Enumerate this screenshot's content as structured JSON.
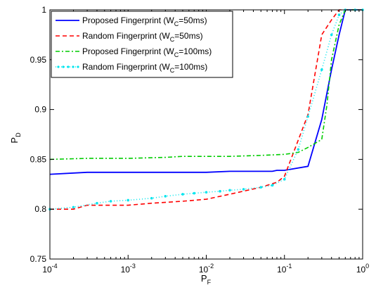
{
  "chart_data": {
    "type": "line",
    "title": "",
    "xlabel": {
      "base": "P",
      "sub": "F"
    },
    "ylabel": {
      "base": "P",
      "sub": "D"
    },
    "xscale": "log",
    "xlim": [
      0.0001,
      1
    ],
    "ylim": [
      0.75,
      1
    ],
    "x_ticks": [
      {
        "value": 0.0001,
        "base": "10",
        "exp": "-4"
      },
      {
        "value": 0.001,
        "base": "10",
        "exp": "-3"
      },
      {
        "value": 0.01,
        "base": "10",
        "exp": "-2"
      },
      {
        "value": 0.1,
        "base": "10",
        "exp": "-1"
      },
      {
        "value": 1,
        "base": "10",
        "exp": "0"
      }
    ],
    "y_ticks": [
      {
        "value": 0.75,
        "label": "0.75"
      },
      {
        "value": 0.8,
        "label": "0.8"
      },
      {
        "value": 0.85,
        "label": "0.85"
      },
      {
        "value": 0.9,
        "label": "0.9"
      },
      {
        "value": 0.95,
        "label": "0.95"
      },
      {
        "value": 1,
        "label": "1"
      }
    ],
    "grid": false,
    "legend_position": "top-left",
    "series": [
      {
        "name": "Proposed Fingerprint (W_C=50ms)",
        "legend": {
          "pre": "Proposed Fingerprint (W",
          "sub": "C",
          "post": "=50ms)"
        },
        "color": "#0000ff",
        "dash": "",
        "marker": "",
        "x": [
          0.0001,
          0.0003,
          0.001,
          0.003,
          0.01,
          0.02,
          0.05,
          0.07,
          0.08,
          0.1,
          0.2,
          0.3,
          0.4,
          0.5,
          0.6,
          0.7,
          1
        ],
        "y": [
          0.835,
          0.837,
          0.837,
          0.837,
          0.837,
          0.838,
          0.838,
          0.838,
          0.839,
          0.839,
          0.843,
          0.89,
          0.94,
          0.975,
          1.0,
          1.0,
          1.0
        ]
      },
      {
        "name": "Random Fingerprint (W_C=50ms)",
        "legend": {
          "pre": "Random Fingerprint (W",
          "sub": "C",
          "post": "=50ms)"
        },
        "color": "#ff0000",
        "dash": "6,4",
        "marker": "",
        "x": [
          0.0001,
          0.0002,
          0.0003,
          0.001,
          0.002,
          0.005,
          0.01,
          0.02,
          0.05,
          0.08,
          0.1,
          0.2,
          0.3,
          0.4,
          0.5,
          1
        ],
        "y": [
          0.8,
          0.8,
          0.804,
          0.804,
          0.806,
          0.808,
          0.81,
          0.815,
          0.822,
          0.827,
          0.833,
          0.895,
          0.975,
          0.99,
          1.0,
          1.0
        ]
      },
      {
        "name": "Proposed Fingerprint (W_C=100ms)",
        "legend": {
          "pre": "Proposed Fingerprint (W",
          "sub": "C",
          "post": "=100ms)"
        },
        "color": "#00cc00",
        "dash": "6,3,2,3",
        "marker": "",
        "x": [
          0.0001,
          0.0003,
          0.001,
          0.003,
          0.005,
          0.01,
          0.02,
          0.05,
          0.1,
          0.15,
          0.2,
          0.3,
          0.35,
          0.4,
          0.5,
          0.6,
          1
        ],
        "y": [
          0.85,
          0.851,
          0.851,
          0.852,
          0.853,
          0.853,
          0.853,
          0.854,
          0.855,
          0.857,
          0.862,
          0.87,
          0.905,
          0.95,
          0.985,
          1.0,
          1.0
        ]
      },
      {
        "name": "Random Fingerprint (W_C=100ms)",
        "legend": {
          "pre": "Random Fingerprint (W",
          "sub": "C",
          "post": "=100ms)"
        },
        "color": "#00e5ee",
        "dash": "1,3",
        "marker": "dot",
        "x": [
          0.0001,
          0.0002,
          0.0004,
          0.0006,
          0.001,
          0.002,
          0.003,
          0.005,
          0.007,
          0.01,
          0.015,
          0.02,
          0.03,
          0.05,
          0.07,
          0.1,
          0.15,
          0.2,
          0.3,
          0.4,
          0.5,
          0.6,
          0.8,
          1
        ],
        "y": [
          0.8,
          0.802,
          0.806,
          0.808,
          0.809,
          0.811,
          0.813,
          0.815,
          0.816,
          0.817,
          0.818,
          0.819,
          0.82,
          0.822,
          0.824,
          0.83,
          0.86,
          0.893,
          0.94,
          0.975,
          0.995,
          1.0,
          1.0,
          1.0
        ]
      }
    ]
  }
}
